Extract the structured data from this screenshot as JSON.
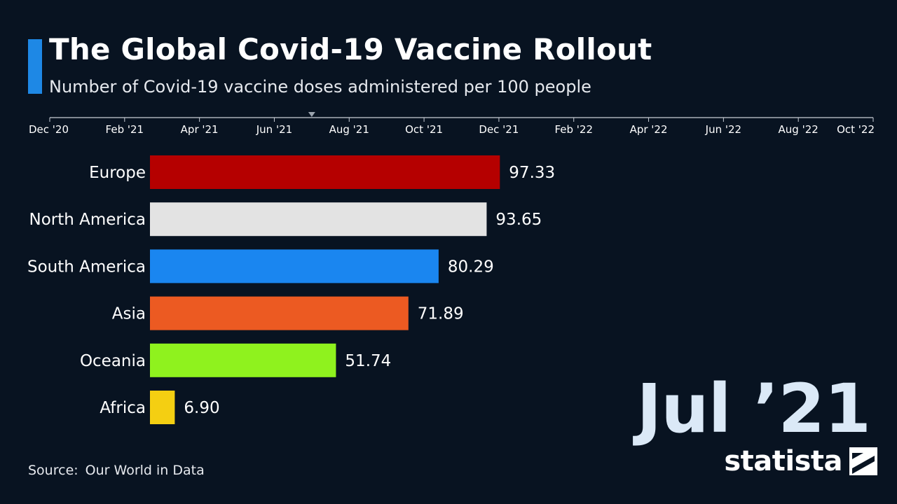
{
  "header": {
    "title": "The Global Covid-19 Vaccine Rollout",
    "subtitle": "Number of Covid-19 vaccine doses administered per 100 people"
  },
  "timeline": {
    "ticks": [
      "Dec '20",
      "Feb '21",
      "Apr '21",
      "Jun '21",
      "Aug '21",
      "Oct '21",
      "Dec '21",
      "Feb '22",
      "Apr '22",
      "Jun '22",
      "Aug '22",
      "Oct '22"
    ],
    "current_label": "Jul ’21",
    "current_date": "2021-07"
  },
  "chart_data": {
    "type": "bar",
    "orientation": "horizontal",
    "title": "The Global Covid-19 Vaccine Rollout",
    "subtitle": "Number of Covid-19 vaccine doses administered per 100 people",
    "categories": [
      "Europe",
      "North America",
      "South America",
      "Asia",
      "Oceania",
      "Africa"
    ],
    "values": [
      97.33,
      93.65,
      80.29,
      71.89,
      51.74,
      6.9
    ],
    "value_labels": [
      "97.33",
      "93.65",
      "80.29",
      "71.89",
      "51.74",
      "6.90"
    ],
    "colors": [
      "#b50000",
      "#e3e3e3",
      "#1a86f0",
      "#ec5a22",
      "#8ff21e",
      "#f4cf12"
    ],
    "xlim": [
      0,
      200
    ],
    "grid": false,
    "legend": "none"
  },
  "footer": {
    "source_label": "Source:",
    "source_value": "Our World in Data",
    "brand": "statista",
    "brand_icon": "statista-logo-icon"
  },
  "theme": {
    "background": "#081321",
    "accent": "#1e88e5"
  }
}
